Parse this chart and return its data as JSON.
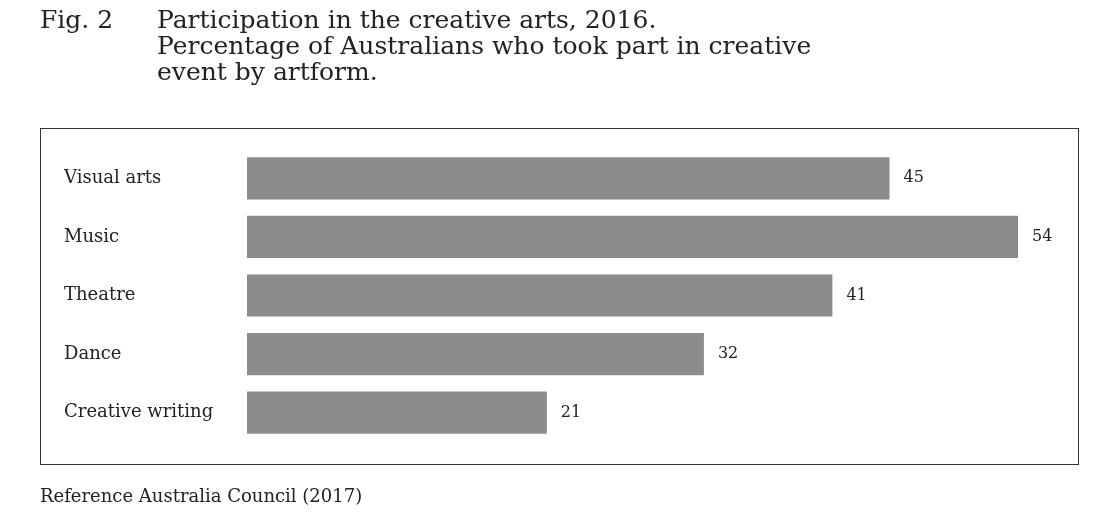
{
  "chart_data": {
    "type": "bar",
    "orientation": "horizontal",
    "title": "Participation in the creative arts, 2016.",
    "subtitle": "Percentage of Australians who took part in creative event by artform.",
    "annotations": [
      "Fig. 2",
      "Reference Australia Council (2017)"
    ],
    "categories": [
      "Visual arts",
      "Music",
      "Theatre",
      "Dance",
      "Creative writing"
    ],
    "values": [
      45,
      54,
      41,
      32,
      21
    ],
    "color": "#8c8c8c",
    "data_labels": true,
    "grid": false,
    "legend": false,
    "tick_labels": "y"
  }
}
